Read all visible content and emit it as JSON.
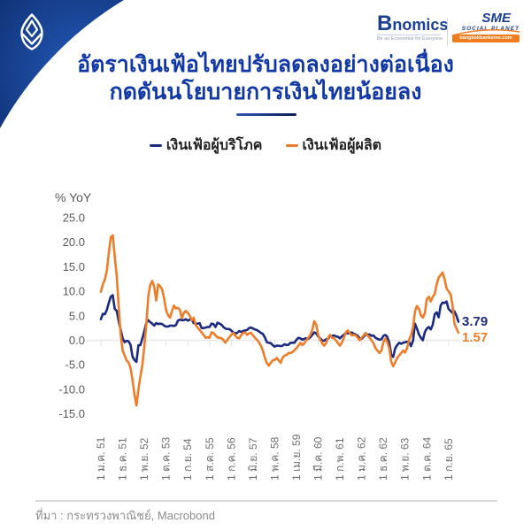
{
  "header": {
    "bnomics_name": "Bnomics",
    "bnomics_tagline": "Be an Economist for Everyone",
    "sme_name": "SME",
    "sme_subtitle": "SOCIAL PLANET",
    "sme_url": "bangkokbanksme.com"
  },
  "title": {
    "line1": "อัตราเงินเฟ้อไทยปรับลดลงอย่างต่อเนื่อง",
    "line2": "กดดันนโยบายการเงินไทยน้อยลง"
  },
  "legend": [
    {
      "label": "เงินเฟ้อผู้บริโภค",
      "color": "#1c2b7f"
    },
    {
      "label": "เงินเฟ้อผู้ผลิต",
      "color": "#ee7d2a"
    }
  ],
  "axis_unit": "% YoY",
  "end_labels": {
    "cpi": "3.79",
    "ppi": "1.57"
  },
  "source": "ที่มา : กระทรวงพาณิชย์, Macrobond",
  "colors": {
    "title_blue": "#1238a6",
    "header_navy_dark": "#0a2763",
    "header_navy_light": "#2459b8",
    "cpi_line": "#1c2b7f",
    "ppi_line": "#ee7d2a",
    "axis_text": "#595959",
    "gridline": "#e8e8e8"
  },
  "chart_data": {
    "type": "line",
    "title": "อัตราเงินเฟ้อไทยปรับลดลงอย่างต่อเนื่อง กดดันนโยบายการเงินไทยน้อยลง",
    "ylabel": "% YoY",
    "ylim": [
      -15.0,
      25.0
    ],
    "grid": "zero-line only",
    "legend_position": "top-center",
    "y_tick_labels": [
      "25.0",
      "20.0",
      "15.0",
      "10.0",
      "5.0",
      "0.0",
      "-5.0",
      "-10.0",
      "-15.0"
    ],
    "y_tick_values": [
      25,
      20,
      15,
      10,
      5,
      0,
      -5,
      -10,
      -15
    ],
    "x_start_month": "ม.ค. 2551 (Jan 2008)",
    "x_end_month": "ก.พ. 2566 (Feb 2023)",
    "x_tick_labels": [
      "1 ม.ค. 51",
      "1 ธ.ค. 51",
      "1 พ.ย. 52",
      "1 ต.ค. 53",
      "1 ก.ย. 54",
      "1 ส.ค. 55",
      "1 ก.ค. 56",
      "1 มิ.ย. 57",
      "1 พ.ค. 58",
      "1 เม.ย. 59",
      "1 มี.ค. 60",
      "1 ก.พ. 61",
      "1 ม.ค. 62",
      "1 ธ.ค. 62",
      "1 พ.ย. 63",
      "1 ต.ค. 64",
      "1 ก.ย. 65"
    ],
    "x_tick_every_n_months": 11,
    "series": [
      {
        "name": "เงินเฟ้อผู้บริโภค",
        "color": "#1c2b7f",
        "end_value": 3.79,
        "values": [
          4.3,
          5.4,
          5.3,
          6.2,
          7.6,
          8.9,
          9.2,
          6.4,
          6.0,
          3.9,
          2.2,
          0.4,
          -0.4,
          -0.1,
          -0.2,
          -0.9,
          -3.3,
          -4.0,
          -4.4,
          -1.0,
          -1.0,
          0.4,
          1.9,
          3.5,
          4.1,
          3.7,
          3.4,
          3.0,
          3.5,
          3.3,
          3.4,
          3.3,
          3.0,
          2.8,
          2.8,
          3.0,
          3.0,
          2.9,
          3.1,
          4.0,
          4.2,
          4.1,
          4.1,
          4.3,
          4.0,
          4.2,
          4.2,
          3.5,
          3.4,
          3.4,
          3.5,
          2.5,
          2.5,
          2.6,
          2.7,
          2.7,
          3.4,
          3.3,
          2.7,
          3.6,
          3.4,
          3.2,
          2.7,
          2.4,
          2.3,
          2.3,
          2.0,
          1.6,
          1.4,
          1.5,
          1.9,
          1.7,
          1.9,
          2.0,
          2.1,
          2.5,
          2.6,
          2.4,
          2.2,
          2.1,
          1.8,
          1.5,
          1.3,
          0.6,
          -0.4,
          -0.5,
          -0.6,
          -1.0,
          -1.3,
          -1.1,
          -1.1,
          -1.2,
          -1.1,
          -0.8,
          -1.0,
          -0.9,
          -0.5,
          -0.5,
          -0.5,
          0.1,
          0.5,
          0.4,
          0.1,
          0.3,
          0.4,
          0.3,
          0.6,
          1.1,
          1.6,
          1.4,
          0.8,
          0.4,
          0.0,
          -0.1,
          0.2,
          0.3,
          0.9,
          0.9,
          1.0,
          0.8,
          0.7,
          0.4,
          0.8,
          1.1,
          1.5,
          1.4,
          1.5,
          1.6,
          1.3,
          1.2,
          0.9,
          0.4,
          0.3,
          0.7,
          1.2,
          1.2,
          1.2,
          0.9,
          1.0,
          0.5,
          0.3,
          0.1,
          0.2,
          0.9,
          1.1,
          0.7,
          -0.5,
          -3.0,
          -3.4,
          -1.6,
          -1.0,
          -0.5,
          -0.7,
          -0.5,
          -0.4,
          -0.3,
          -0.3,
          -1.2,
          -0.1,
          3.4,
          2.4,
          1.2,
          0.5,
          0.0,
          1.7,
          2.4,
          2.7,
          2.2,
          3.2,
          5.3,
          5.7,
          4.7,
          7.1,
          7.7,
          7.6,
          7.9,
          6.4,
          6.0,
          5.6,
          5.9,
          5.0,
          3.79
        ]
      },
      {
        "name": "เงินเฟ้อผู้ผลิต",
        "color": "#ee7d2a",
        "end_value": 1.57,
        "values": [
          9.9,
          11.4,
          12.4,
          14.2,
          17.8,
          21.0,
          21.4,
          17.2,
          13.1,
          7.0,
          1.2,
          -2.1,
          -3.1,
          -4.1,
          -4.5,
          -5.6,
          -8.1,
          -11.0,
          -13.3,
          -10.1,
          -7.4,
          -5.0,
          -1.2,
          3.1,
          9.0,
          11.3,
          12.1,
          10.9,
          8.1,
          11.4,
          11.0,
          10.4,
          8.6,
          6.1,
          5.1,
          4.6,
          6.0,
          7.1,
          6.5,
          6.6,
          6.2,
          4.5,
          5.6,
          6.0,
          5.6,
          5.0,
          4.1,
          4.6,
          3.1,
          2.6,
          2.1,
          1.6,
          1.1,
          0.5,
          0.6,
          0.5,
          1.6,
          1.5,
          1.0,
          0.6,
          0.5,
          0.4,
          0.1,
          -0.5,
          0.1,
          0.6,
          1.1,
          1.5,
          1.0,
          0.5,
          0.4,
          1.0,
          1.5,
          1.6,
          1.1,
          1.4,
          1.5,
          1.0,
          0.5,
          0.1,
          -0.4,
          -1.1,
          -2.1,
          -3.6,
          -4.6,
          -5.2,
          -4.6,
          -4.1,
          -4.0,
          -3.6,
          -4.1,
          -4.6,
          -3.6,
          -3.1,
          -3.0,
          -2.6,
          -2.6,
          -2.4,
          -2.0,
          -1.6,
          -1.1,
          -0.5,
          -1.0,
          -0.6,
          0.0,
          0.5,
          1.1,
          2.1,
          3.9,
          3.2,
          1.1,
          0.1,
          -0.6,
          -1.1,
          -0.6,
          0.5,
          1.1,
          0.5,
          0.4,
          0.0,
          -0.6,
          -1.1,
          -0.5,
          0.5,
          1.6,
          2.0,
          1.5,
          1.0,
          1.1,
          1.0,
          0.5,
          0.0,
          0.5,
          1.0,
          1.5,
          1.0,
          0.5,
          0.0,
          -0.6,
          -1.6,
          -2.1,
          -2.6,
          -2.1,
          -0.4,
          0.4,
          -0.4,
          -1.7,
          -4.4,
          -5.3,
          -4.5,
          -3.6,
          -3.1,
          -2.6,
          -2.1,
          -2.5,
          -1.6,
          0.1,
          1.0,
          2.6,
          5.9,
          7.0,
          6.4,
          5.1,
          4.6,
          5.6,
          8.4,
          8.9,
          7.9,
          8.9,
          9.4,
          11.4,
          12.8,
          13.3,
          13.8,
          12.4,
          10.6,
          10.0,
          9.4,
          7.2,
          3.4,
          2.4,
          1.57
        ]
      }
    ]
  }
}
